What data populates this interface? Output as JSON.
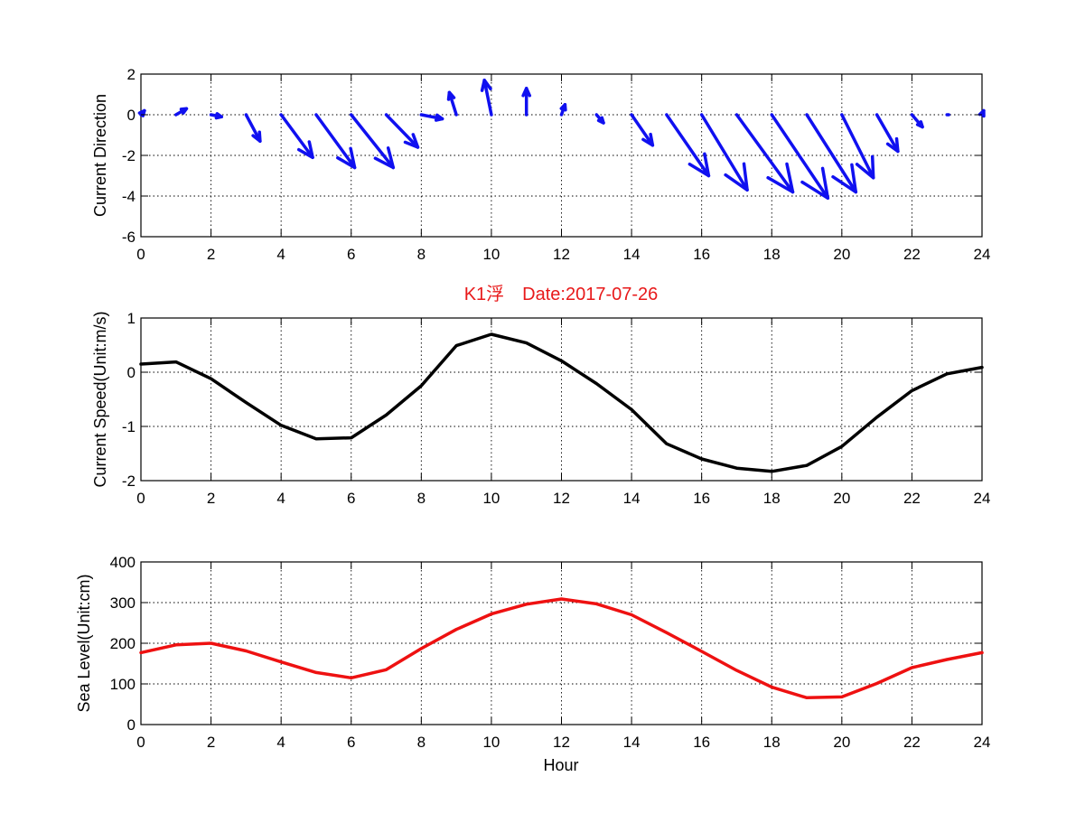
{
  "figure": {
    "title": "K1浮　Date:2017-07-26",
    "title_color": "#e8191a",
    "background": "#ffffff"
  },
  "chart_data": [
    {
      "type": "quiver",
      "xlabel": "",
      "ylabel": "Current Direction",
      "xlim": [
        0,
        24
      ],
      "ylim": [
        -6,
        2
      ],
      "xticks": [
        0,
        2,
        4,
        6,
        8,
        10,
        12,
        14,
        16,
        18,
        20,
        22,
        24
      ],
      "yticks": [
        -6,
        -4,
        -2,
        0,
        2
      ],
      "grid": true,
      "color": "#1010f0",
      "series": [
        {
          "x": [
            0,
            1,
            2,
            3,
            4,
            5,
            6,
            7,
            8,
            9,
            10,
            11,
            12,
            13,
            14,
            15,
            16,
            17,
            18,
            19,
            20,
            21,
            22,
            23,
            24
          ],
          "u": [
            0.1,
            0.3,
            0.3,
            0.4,
            0.9,
            1.1,
            1.2,
            0.9,
            0.6,
            -0.2,
            -0.2,
            0.0,
            0.1,
            0.2,
            0.6,
            1.2,
            1.3,
            1.6,
            1.6,
            1.4,
            0.9,
            0.6,
            0.3,
            0.05,
            0.05
          ],
          "v": [
            0.2,
            0.3,
            -0.1,
            -1.3,
            -2.1,
            -2.6,
            -2.6,
            -1.6,
            -0.2,
            1.1,
            1.7,
            1.3,
            0.5,
            -0.4,
            -1.5,
            -3.0,
            -3.7,
            -3.8,
            -4.1,
            -3.8,
            -3.1,
            -1.8,
            -0.6,
            0.0,
            0.2
          ]
        }
      ]
    },
    {
      "type": "line",
      "xlabel": "",
      "ylabel": "Current Speed(Unit:m/s)",
      "xlim": [
        0,
        24
      ],
      "ylim": [
        -2,
        1
      ],
      "xticks": [
        0,
        2,
        4,
        6,
        8,
        10,
        12,
        14,
        16,
        18,
        20,
        22,
        24
      ],
      "yticks": [
        -2,
        -1,
        0,
        1
      ],
      "grid": true,
      "series": [
        {
          "color": "#000000",
          "x": [
            0,
            1,
            2,
            3,
            4,
            5,
            6,
            7,
            8,
            9,
            10,
            11,
            12,
            13,
            14,
            15,
            16,
            17,
            18,
            19,
            20,
            21,
            22,
            23,
            24
          ],
          "y": [
            0.15,
            0.19,
            -0.12,
            -0.56,
            -0.98,
            -1.23,
            -1.21,
            -0.79,
            -0.25,
            0.49,
            0.7,
            0.54,
            0.21,
            -0.21,
            -0.69,
            -1.32,
            -1.6,
            -1.77,
            -1.83,
            -1.72,
            -1.37,
            -0.83,
            -0.34,
            -0.03,
            0.09
          ]
        }
      ]
    },
    {
      "type": "line",
      "xlabel": "Hour",
      "ylabel": "Sea Level(Unit:cm)",
      "xlim": [
        0,
        24
      ],
      "ylim": [
        0,
        400
      ],
      "xticks": [
        0,
        2,
        4,
        6,
        8,
        10,
        12,
        14,
        16,
        18,
        20,
        22,
        24
      ],
      "yticks": [
        0,
        100,
        200,
        300,
        400
      ],
      "grid": true,
      "series": [
        {
          "color": "#ee1111",
          "x": [
            0,
            1,
            2,
            3,
            4,
            5,
            6,
            7,
            8,
            9,
            10,
            11,
            12,
            13,
            14,
            15,
            16,
            17,
            18,
            19,
            20,
            21,
            22,
            23,
            24
          ],
          "y": [
            177,
            196,
            200,
            181,
            154,
            128,
            115,
            135,
            187,
            234,
            272,
            296,
            309,
            297,
            270,
            226,
            180,
            133,
            92,
            66,
            68,
            101,
            140,
            160,
            177
          ]
        }
      ]
    }
  ]
}
